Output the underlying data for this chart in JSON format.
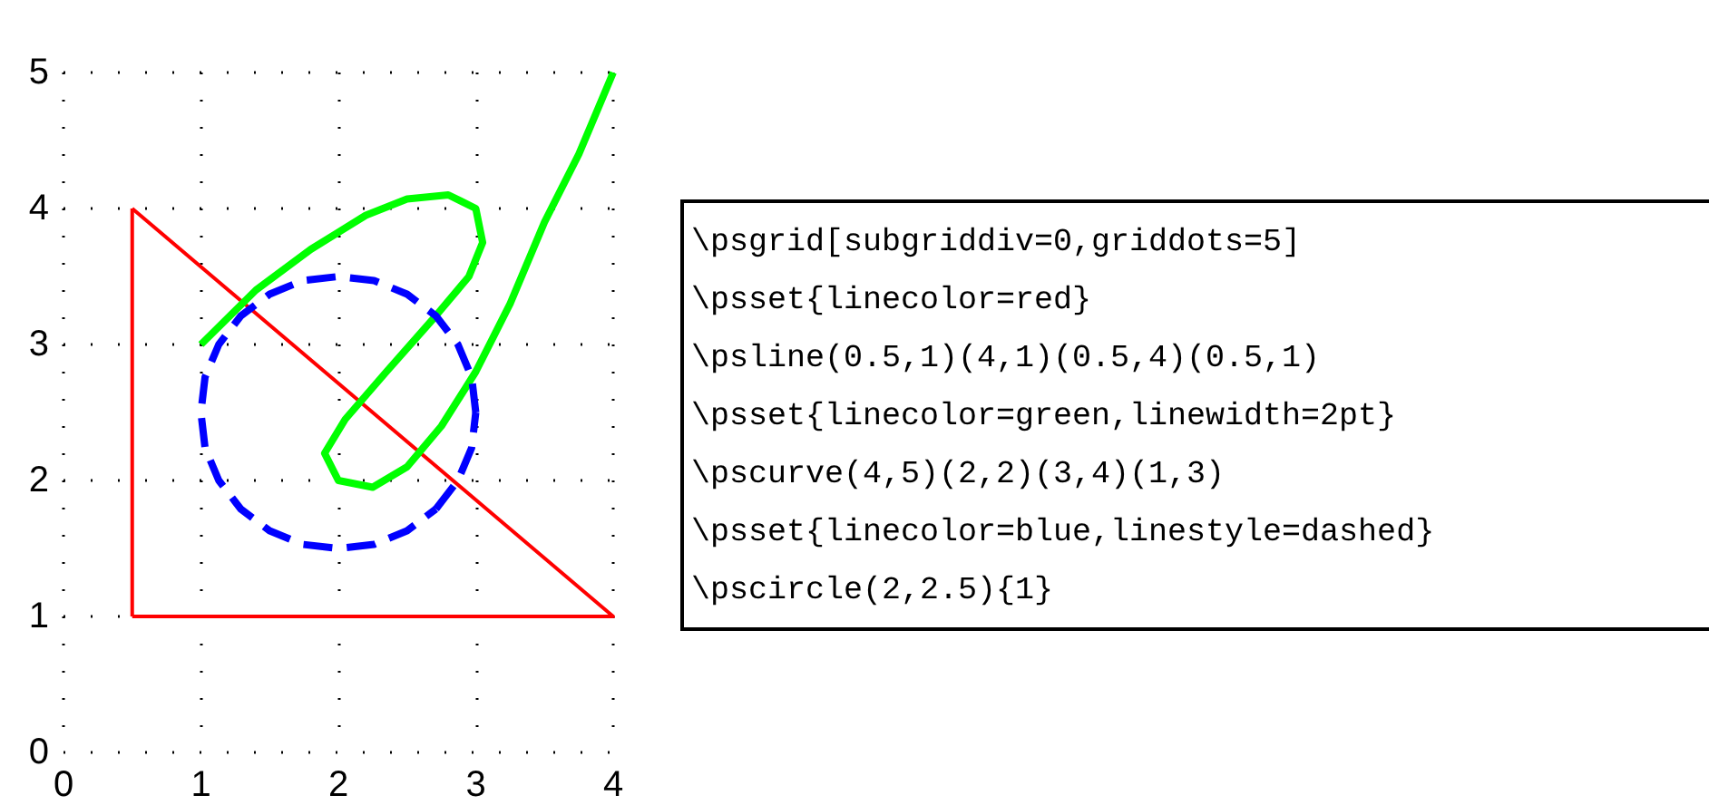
{
  "chart_data": {
    "type": "line",
    "xlim": [
      0,
      4
    ],
    "ylim": [
      0,
      5
    ],
    "xticks": [
      0,
      1,
      2,
      3,
      4
    ],
    "yticks": [
      0,
      1,
      2,
      3,
      4,
      5
    ],
    "grid": true,
    "marker": "none",
    "series": [
      {
        "color": "#ff0000",
        "line_style": "solid",
        "x": [
          0.5,
          4,
          0.5,
          0.5
        ],
        "values": [
          1,
          1,
          4,
          1
        ]
      },
      {
        "color": "#00ff00",
        "line_style": "solid",
        "x": [
          4,
          3.75,
          3.5,
          3.25,
          3,
          2.75,
          2.5,
          2.25,
          2,
          1.9,
          2.05,
          2.35,
          2.7,
          2.95,
          3.05,
          3,
          2.8,
          2.5,
          2.2,
          1.8,
          1.4,
          1
        ],
        "values": [
          5,
          4.4,
          3.9,
          3.3,
          2.8,
          2.4,
          2.1,
          1.95,
          2,
          2.2,
          2.45,
          2.8,
          3.2,
          3.5,
          3.75,
          4,
          4.1,
          4.07,
          3.95,
          3.7,
          3.4,
          3
        ]
      },
      {
        "color": "#0000ff",
        "line_style": "dashed",
        "x": [
          3,
          2.97,
          2.87,
          2.71,
          2.5,
          2.26,
          2,
          1.74,
          1.5,
          1.29,
          1.13,
          1.03,
          1,
          1.03,
          1.13,
          1.29,
          1.5,
          1.74,
          2,
          2.26,
          2.5,
          2.71,
          2.87,
          2.97,
          3
        ],
        "values": [
          2.5,
          2.76,
          3,
          3.21,
          3.37,
          3.47,
          3.5,
          3.47,
          3.37,
          3.21,
          3,
          2.76,
          2.5,
          2.24,
          2,
          1.79,
          1.63,
          1.53,
          1.5,
          1.53,
          1.63,
          1.79,
          2,
          2.24,
          2.5
        ]
      }
    ],
    "annotations": [
      "\\psgrid[subgriddiv=0,griddots=5]",
      "\\psset{linecolor=red}",
      "\\psline(0.5,1)(4,1)(0.5,4)(0.5,1)",
      "\\psset{linecolor=green,linewidth=2pt}",
      "\\pscurve(4,5)(2,2)(3,4)(1,3)",
      "\\psset{linecolor=blue,linestyle=dashed}",
      "\\pscircle(2,2.5){1}"
    ]
  }
}
